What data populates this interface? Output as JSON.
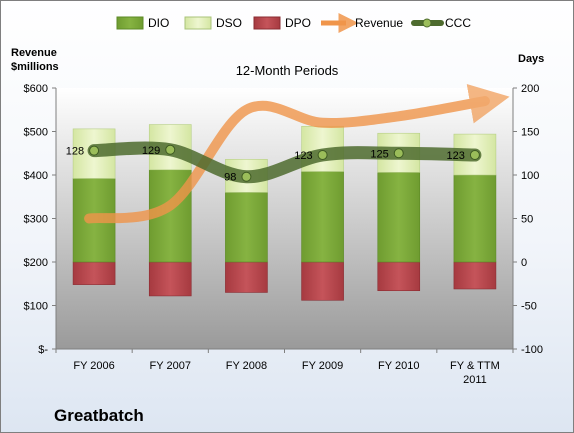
{
  "chart_data": {
    "type": "bar",
    "title": "12-Month Periods",
    "company": "Greatbatch",
    "ylabel_left": "Revenue $millions",
    "ylabel_right": "Days",
    "categories": [
      "FY 2006",
      "FY 2007",
      "FY 2008",
      "FY 2009",
      "FY 2010",
      "FY & TTM 2011"
    ],
    "left_axis": {
      "ylim": [
        0,
        600
      ],
      "ticks": [
        0,
        100,
        200,
        300,
        400,
        500,
        600
      ],
      "tick_labels": [
        "$-",
        "$100",
        "$200",
        "$300",
        "$400",
        "$500",
        "$600"
      ]
    },
    "right_axis": {
      "ylim": [
        -100,
        200
      ],
      "ticks": [
        -100,
        -50,
        0,
        50,
        100,
        150,
        200
      ],
      "tick_labels": [
        "-100",
        "-50",
        "0",
        "50",
        "100",
        "150",
        "200"
      ]
    },
    "series": [
      {
        "name": "DIO",
        "axis": "right",
        "values": [
          96,
          106,
          80,
          104,
          103,
          100
        ]
      },
      {
        "name": "DSO",
        "axis": "right",
        "values": [
          57,
          52,
          38,
          52,
          45,
          47
        ]
      },
      {
        "name": "DPO",
        "axis": "right",
        "values": [
          -26,
          -39,
          -35,
          -44,
          -33,
          -31
        ]
      },
      {
        "name": "Revenue",
        "axis": "left",
        "values": [
          300,
          330,
          550,
          520,
          535,
          570
        ]
      },
      {
        "name": "CCC",
        "axis": "right",
        "values": [
          128,
          129,
          98,
          123,
          125,
          123
        ]
      }
    ],
    "data_labels": {
      "series": "CCC",
      "values": [
        "128",
        "129",
        "98",
        "123",
        "125",
        "123"
      ]
    },
    "legend": {
      "placement": "top",
      "entries": [
        "DIO",
        "DSO",
        "DPO",
        "Revenue",
        "CCC"
      ]
    },
    "colors": {
      "dio": "#7fae3a",
      "dso": "#dfeeb4",
      "dpo": "#b8444b",
      "revenue": "#f0954a",
      "ccc": "#4e6b2e",
      "plot_top": "#ffffff",
      "plot_bottom": "#999999"
    },
    "grid": false
  }
}
